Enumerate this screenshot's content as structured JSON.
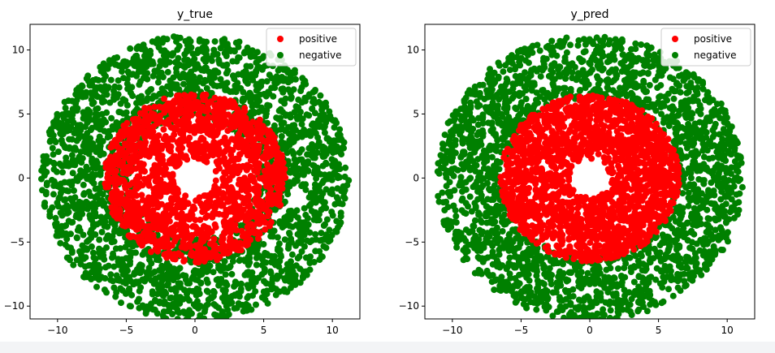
{
  "chart_data": [
    {
      "type": "scatter",
      "title": "y_true",
      "xlabel": "",
      "ylabel": "",
      "xlim": [
        -12,
        12
      ],
      "ylim": [
        -11,
        12
      ],
      "xticks": [
        -10,
        -5,
        0,
        5,
        10
      ],
      "yticks": [
        -10,
        -5,
        0,
        5,
        10
      ],
      "xtick_labels": [
        "−10",
        "−5",
        "0",
        "5",
        "10"
      ],
      "ytick_labels": [
        "−10",
        "−5",
        "0",
        "5",
        "10"
      ],
      "legend": {
        "placement": "top-right",
        "entries": [
          "positive",
          "negative"
        ]
      },
      "series": [
        {
          "name": "negative",
          "color": "#008000",
          "shape": "annulus",
          "center": [
            0,
            0
          ],
          "r_min": 4.6,
          "r_max": 11.2,
          "approx_count": 2500
        },
        {
          "name": "positive",
          "color": "#ff0000",
          "shape": "annulus",
          "center": [
            0,
            0
          ],
          "r_min": 1.5,
          "r_max": 6.6,
          "approx_count": 1600
        }
      ]
    },
    {
      "type": "scatter",
      "title": "y_pred",
      "xlabel": "",
      "ylabel": "",
      "xlim": [
        -12,
        12
      ],
      "ylim": [
        -11,
        12
      ],
      "xticks": [
        -10,
        -5,
        0,
        5,
        10
      ],
      "yticks": [
        -10,
        -5,
        0,
        5,
        10
      ],
      "xtick_labels": [
        "−10",
        "−5",
        "0",
        "5",
        "10"
      ],
      "ytick_labels": [
        "−10",
        "−5",
        "0",
        "5",
        "10"
      ],
      "legend": {
        "placement": "top-right",
        "entries": [
          "positive",
          "negative"
        ]
      },
      "series": [
        {
          "name": "negative",
          "color": "#008000",
          "shape": "annulus",
          "center": [
            0,
            0
          ],
          "r_min": 6.2,
          "r_max": 11.2,
          "approx_count": 2200
        },
        {
          "name": "positive",
          "color": "#ff0000",
          "shape": "annulus",
          "center": [
            0,
            0
          ],
          "r_min": 1.5,
          "r_max": 6.5,
          "approx_count": 1900
        }
      ]
    }
  ]
}
